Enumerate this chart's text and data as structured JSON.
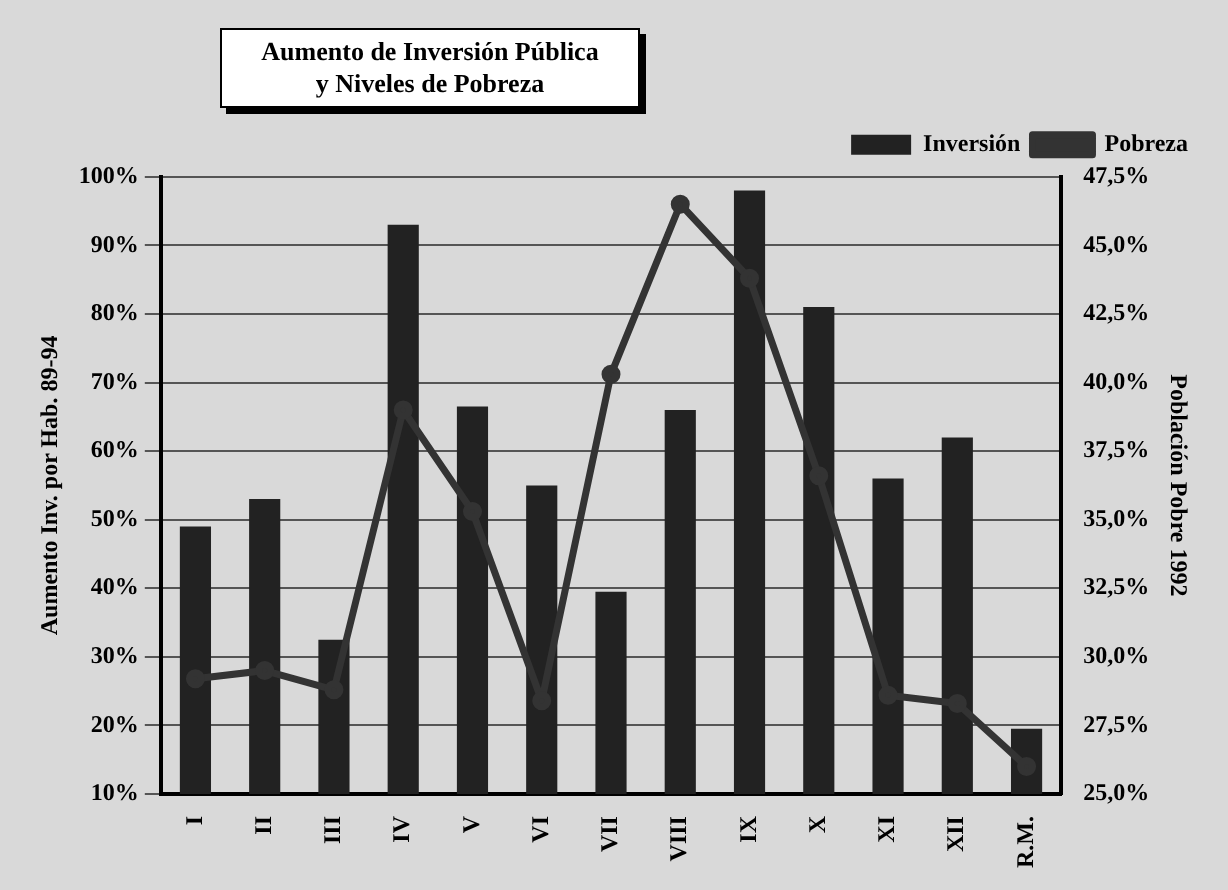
{
  "chart_data": {
    "type": "bar",
    "title": "Aumento de Inversión Pública\ny Niveles de Pobreza",
    "ylabel": "Aumento Inv. por Hab. 89-94",
    "y2label": "Población Pobre 1992",
    "categories": [
      "I",
      "II",
      "III",
      "IV",
      "V",
      "VI",
      "VII",
      "VIII",
      "IX",
      "X",
      "XI",
      "XII",
      "R.M."
    ],
    "series": [
      {
        "name": "Inversión",
        "color": "#222222",
        "values": [
          49,
          53,
          32.5,
          93,
          66.5,
          55,
          39.5,
          66,
          98,
          81,
          56,
          62,
          19.5
        ]
      },
      {
        "name": "Pobreza",
        "type": "line",
        "axis": "y2",
        "color": "#333333",
        "values": [
          29.2,
          29.5,
          28.8,
          39.0,
          35.3,
          28.4,
          40.3,
          46.5,
          43.8,
          36.6,
          28.6,
          28.3,
          26.0
        ]
      }
    ],
    "ylim": [
      10,
      100
    ],
    "yticks": [
      {
        "value": 10,
        "label": "10%"
      },
      {
        "value": 20,
        "label": "20%"
      },
      {
        "value": 30,
        "label": "30%"
      },
      {
        "value": 40,
        "label": "40%"
      },
      {
        "value": 50,
        "label": "50%"
      },
      {
        "value": 60,
        "label": "60%"
      },
      {
        "value": 70,
        "label": "70%"
      },
      {
        "value": 80,
        "label": "80%"
      },
      {
        "value": 90,
        "label": "90%"
      },
      {
        "value": 100,
        "label": "100%"
      }
    ],
    "y2lim": [
      25,
      47.5
    ],
    "y2ticks": [
      {
        "value": 25,
        "label": "25,0%"
      },
      {
        "value": 27.5,
        "label": "27,5%"
      },
      {
        "value": 30,
        "label": "30,0%"
      },
      {
        "value": 32.5,
        "label": "32,5%"
      },
      {
        "value": 35,
        "label": "35,0%"
      },
      {
        "value": 37.5,
        "label": "37,5%"
      },
      {
        "value": 40,
        "label": "40,0%"
      },
      {
        "value": 42.5,
        "label": "42,5%"
      },
      {
        "value": 45,
        "label": "45,0%"
      },
      {
        "value": 47.5,
        "label": "47,5%"
      }
    ],
    "grid": "y",
    "legend": "top right",
    "marker": "circle",
    "line_style": "solid"
  }
}
